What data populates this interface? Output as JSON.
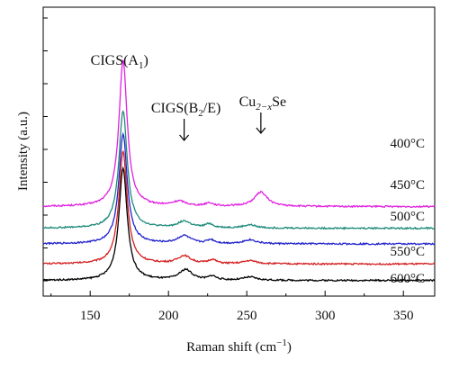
{
  "chart_data": {
    "type": "line",
    "title": "",
    "xlabel_main": "Raman shift (cm",
    "xlabel_sup": "−1",
    "xlabel_close": ")",
    "ylabel": "Intensity (a.u.)",
    "xlim": [
      120,
      370
    ],
    "x_ticks": [
      150,
      200,
      250,
      300,
      350
    ],
    "y_ticks_count": 9,
    "grid": false,
    "legend": "none",
    "annotations": [
      {
        "key": "a1",
        "base": "CIGS(A",
        "sub": "1",
        "close": ")",
        "x": 171
      },
      {
        "key": "b2e",
        "base": "CIGS(B",
        "sub": "2",
        "close": "/E)",
        "x": 210
      },
      {
        "key": "cuse",
        "base": "Cu",
        "sub": "2−x",
        "close": "Se",
        "x": 259
      }
    ],
    "series": [
      {
        "label": "400°C",
        "color": "#e020e0",
        "baseline": 3.05,
        "peaks": [
          [
            171,
            5.6,
            3.2
          ],
          [
            207,
            0.18,
            5
          ],
          [
            226,
            0.12,
            3
          ],
          [
            259,
            0.55,
            5
          ]
        ]
      },
      {
        "label": "450°C",
        "color": "#1d8a7a",
        "baseline": 2.22,
        "peaks": [
          [
            171,
            4.5,
            3.2
          ],
          [
            210,
            0.25,
            5
          ],
          [
            226,
            0.15,
            3
          ],
          [
            252,
            0.12,
            5
          ]
        ]
      },
      {
        "label": "500°C",
        "color": "#2222cc",
        "baseline": 1.62,
        "peaks": [
          [
            171,
            4.2,
            3.2
          ],
          [
            210,
            0.3,
            5
          ],
          [
            227,
            0.14,
            3
          ],
          [
            252,
            0.15,
            5
          ]
        ]
      },
      {
        "label": "550°C",
        "color": "#d42020",
        "baseline": 0.85,
        "peaks": [
          [
            171,
            4.3,
            3.2
          ],
          [
            210,
            0.3,
            5
          ],
          [
            228,
            0.15,
            3
          ],
          [
            252,
            0.12,
            5
          ]
        ]
      },
      {
        "label": "600°C",
        "color": "#000000",
        "baseline": 0.22,
        "peaks": [
          [
            171,
            4.3,
            3.2
          ],
          [
            211,
            0.4,
            5
          ],
          [
            228,
            0.15,
            3
          ],
          [
            252,
            0.12,
            5
          ]
        ]
      }
    ]
  }
}
